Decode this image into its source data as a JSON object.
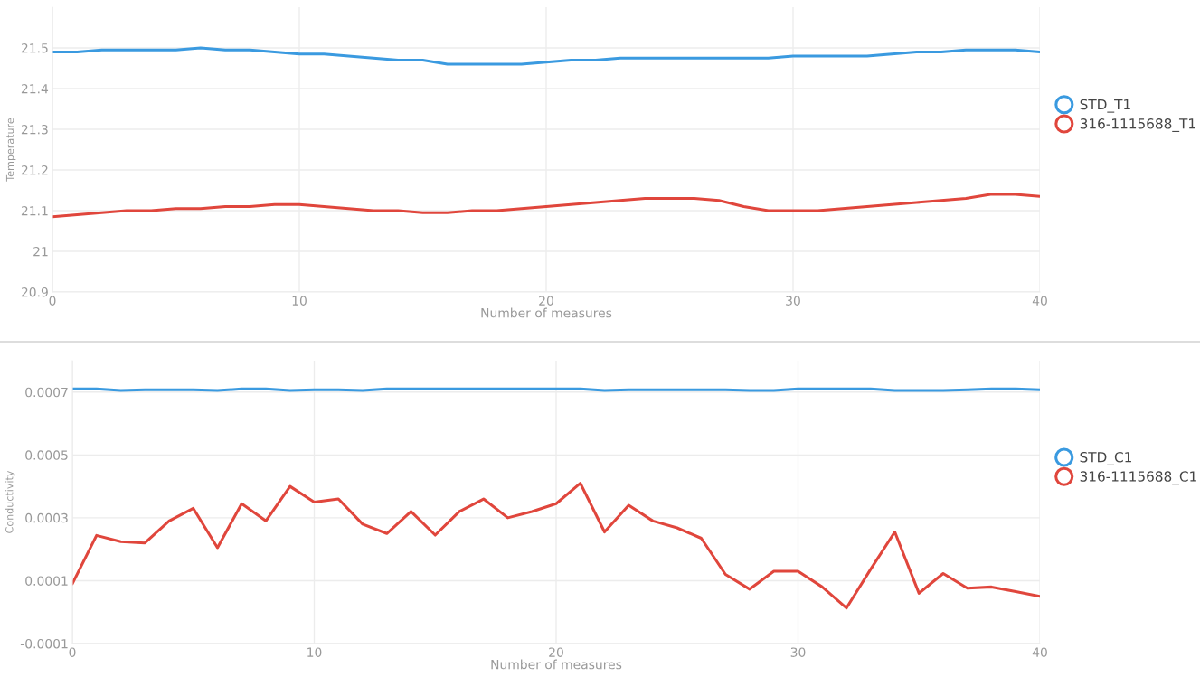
{
  "chart_data": [
    {
      "type": "line",
      "xlabel": "Number of measures",
      "ylabel": "Temperature",
      "x": [
        0,
        1,
        2,
        3,
        4,
        5,
        6,
        7,
        8,
        9,
        10,
        11,
        12,
        13,
        14,
        15,
        16,
        17,
        18,
        19,
        20,
        21,
        22,
        23,
        24,
        25,
        26,
        27,
        28,
        29,
        30,
        31,
        32,
        33,
        34,
        35,
        36,
        37,
        38,
        39,
        40
      ],
      "xlim": [
        0,
        40
      ],
      "xticks": [
        0,
        10,
        20,
        30,
        40
      ],
      "ylim": [
        20.9,
        21.6
      ],
      "yticks": [
        20.9,
        21,
        21.1,
        21.2,
        21.3,
        21.4,
        21.5
      ],
      "grid": true,
      "legend": "right",
      "marker": "none",
      "line_style": "solid",
      "series": [
        {
          "name": "STD_T1",
          "color": "#3a9ae0",
          "values": [
            21.49,
            21.49,
            21.495,
            21.495,
            21.495,
            21.495,
            21.5,
            21.495,
            21.495,
            21.49,
            21.485,
            21.485,
            21.48,
            21.475,
            21.47,
            21.47,
            21.46,
            21.46,
            21.46,
            21.46,
            21.465,
            21.47,
            21.47,
            21.475,
            21.475,
            21.475,
            21.475,
            21.475,
            21.475,
            21.475,
            21.48,
            21.48,
            21.48,
            21.48,
            21.485,
            21.49,
            21.49,
            21.495,
            21.495,
            21.495,
            21.49
          ]
        },
        {
          "name": "316-1115688_T1",
          "color": "#e0463c",
          "values": [
            21.085,
            21.09,
            21.095,
            21.1,
            21.1,
            21.105,
            21.105,
            21.11,
            21.11,
            21.115,
            21.115,
            21.11,
            21.105,
            21.1,
            21.1,
            21.095,
            21.095,
            21.1,
            21.1,
            21.105,
            21.11,
            21.115,
            21.12,
            21.125,
            21.13,
            21.13,
            21.13,
            21.125,
            21.11,
            21.1,
            21.1,
            21.1,
            21.105,
            21.11,
            21.115,
            21.12,
            21.125,
            21.13,
            21.14,
            21.14,
            21.135
          ]
        }
      ]
    },
    {
      "type": "line",
      "xlabel": "Number of measures",
      "ylabel": "Conductivity",
      "x": [
        0,
        1,
        2,
        3,
        4,
        5,
        6,
        7,
        8,
        9,
        10,
        11,
        12,
        13,
        14,
        15,
        16,
        17,
        18,
        19,
        20,
        21,
        22,
        23,
        24,
        25,
        26,
        27,
        28,
        29,
        30,
        31,
        32,
        33,
        34,
        35,
        36,
        37,
        38,
        39,
        40
      ],
      "xlim": [
        0,
        40
      ],
      "xticks": [
        0,
        10,
        20,
        30,
        40
      ],
      "ylim": [
        -0.0001,
        0.0008
      ],
      "yticks": [
        -0.0001,
        0.0001,
        0.0003,
        0.0005,
        0.0007
      ],
      "grid": true,
      "legend": "right",
      "marker": "none",
      "line_style": "solid",
      "series": [
        {
          "name": "STD_C1",
          "color": "#3a9ae0",
          "values": [
            0.00071,
            0.00071,
            0.000705,
            0.000707,
            0.000707,
            0.000707,
            0.000705,
            0.00071,
            0.00071,
            0.000705,
            0.000707,
            0.000707,
            0.000705,
            0.00071,
            0.00071,
            0.00071,
            0.00071,
            0.00071,
            0.00071,
            0.00071,
            0.00071,
            0.00071,
            0.000705,
            0.000707,
            0.000707,
            0.000707,
            0.000707,
            0.000707,
            0.000705,
            0.000705,
            0.00071,
            0.00071,
            0.00071,
            0.00071,
            0.000705,
            0.000705,
            0.000705,
            0.000707,
            0.00071,
            0.00071,
            0.000707
          ]
        },
        {
          "name": "316-1115688_C1",
          "color": "#e0463c",
          "values": [
            9e-05,
            0.000244,
            0.000224,
            0.00022,
            0.00029,
            0.00033,
            0.000205,
            0.000345,
            0.00029,
            0.0004,
            0.00035,
            0.00036,
            0.00028,
            0.00025,
            0.00032,
            0.000245,
            0.00032,
            0.00036,
            0.0003,
            0.00032,
            0.000345,
            0.00041,
            0.000255,
            0.00034,
            0.00029,
            0.000268,
            0.000235,
            0.00012,
            7.3e-05,
            0.00013,
            0.00013,
            8e-05,
            1.3e-05,
            0.000136,
            0.000255,
            6e-05,
            0.000123,
            7.6e-05,
            8e-05,
            6.5e-05,
            5e-05
          ]
        }
      ]
    }
  ]
}
